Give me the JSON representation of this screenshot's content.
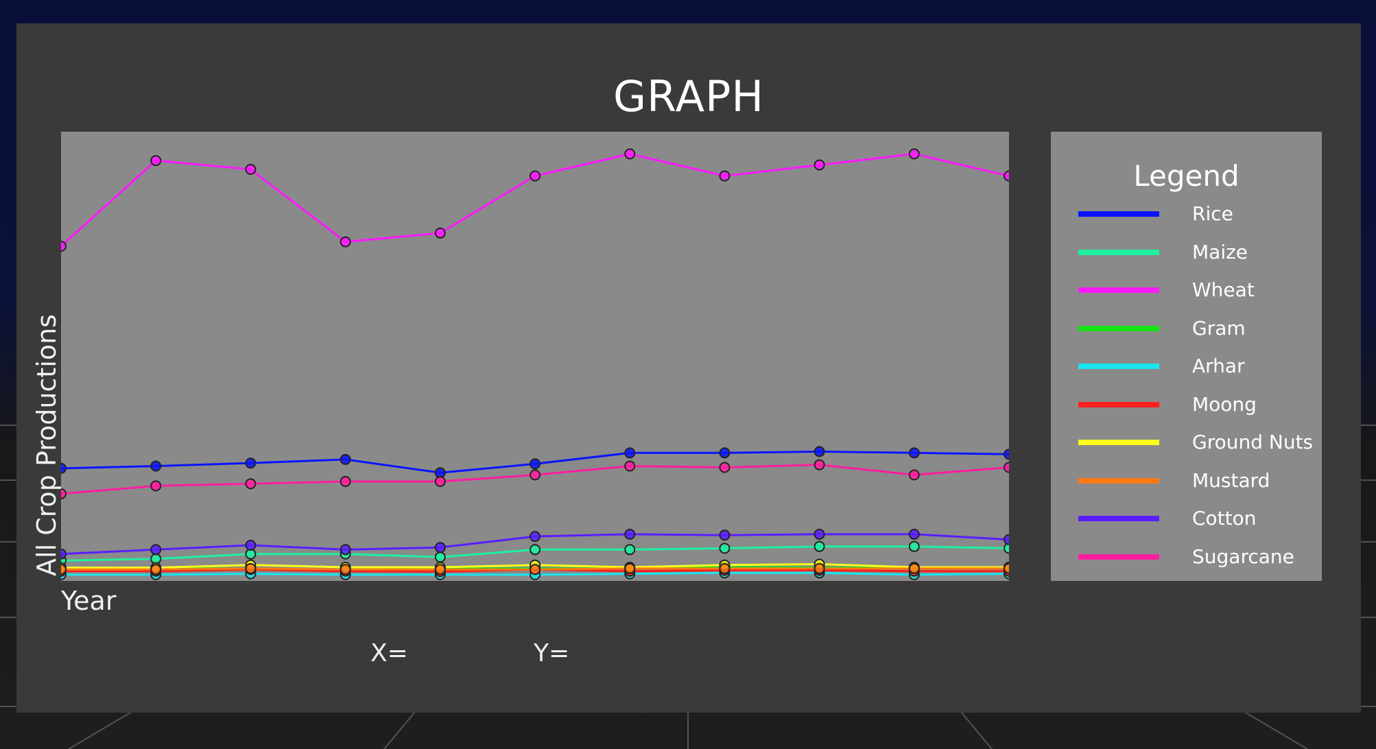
{
  "panel": {
    "title": "GRAPH",
    "readout_x": "X=",
    "readout_y": "Y="
  },
  "legend": {
    "title": "Legend"
  },
  "chart_data": {
    "type": "line",
    "title": "GRAPH",
    "xlabel": "Year",
    "ylabel": "All Crop Productions",
    "x": [
      1,
      2,
      3,
      4,
      5,
      6,
      7,
      8,
      9,
      10,
      11
    ],
    "ylim": [
      0,
      100
    ],
    "grid": false,
    "legend_position": "right",
    "series": [
      {
        "name": "Rice",
        "color": "#0a14ff",
        "values": [
          25,
          25.5,
          26.2,
          27,
          24,
          26,
          28.5,
          28.5,
          28.8,
          28.5,
          28.2
        ]
      },
      {
        "name": "Maize",
        "color": "#1ef0a0",
        "values": [
          4,
          4.4,
          5.5,
          5.5,
          4.8,
          6.5,
          6.5,
          6.8,
          7.2,
          7.2,
          6.8
        ]
      },
      {
        "name": "Wheat",
        "color": "#ff19ff",
        "values": [
          75.5,
          95,
          93,
          76.5,
          78.5,
          91.5,
          96.5,
          91.5,
          94,
          96.5,
          91.5
        ]
      },
      {
        "name": "Gram",
        "color": "#14e614",
        "values": [
          2.2,
          2.2,
          2.2,
          2,
          2.2,
          2.2,
          2.2,
          2.5,
          2.4,
          2.4,
          2.5
        ]
      },
      {
        "name": "Arhar",
        "color": "#19e6f0",
        "values": [
          0.8,
          0.8,
          1,
          0.8,
          0.8,
          0.8,
          1,
          1.2,
          1.2,
          0.8,
          1
        ]
      },
      {
        "name": "Moong",
        "color": "#ff1e1e",
        "values": [
          1.6,
          1.6,
          2,
          1.6,
          1.5,
          2,
          1.6,
          1.8,
          1.8,
          1.6,
          1.6
        ]
      },
      {
        "name": "Ground Nuts",
        "color": "#ffff1e",
        "values": [
          2.4,
          2.4,
          3,
          2.5,
          2.5,
          3,
          2.5,
          3,
          3.2,
          2.5,
          2.5
        ]
      },
      {
        "name": "Mustard",
        "color": "#ff7814",
        "values": [
          2,
          2,
          2.2,
          2,
          2,
          2,
          2.2,
          2.2,
          2.2,
          2.2,
          2.2
        ]
      },
      {
        "name": "Cotton",
        "color": "#5a1eff",
        "values": [
          5.5,
          6.5,
          7.5,
          6.5,
          7,
          9.5,
          10,
          9.8,
          10,
          10,
          8.8
        ]
      },
      {
        "name": "Sugarcane",
        "color": "#ff1ea0",
        "values": [
          19.2,
          21,
          21.5,
          22,
          22,
          23.5,
          25.5,
          25.2,
          25.8,
          23.5,
          25.2
        ]
      }
    ]
  }
}
